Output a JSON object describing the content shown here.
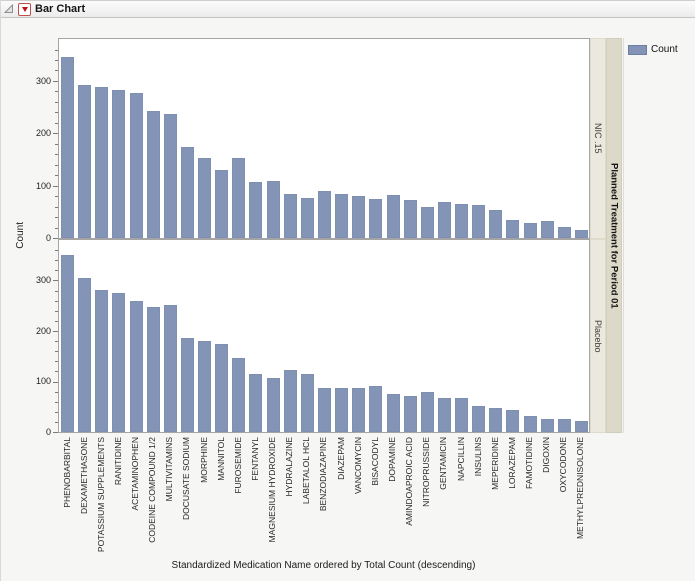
{
  "window": {
    "title": "Bar Chart"
  },
  "legend": {
    "label": "Count",
    "swatch_color": "#8394b6"
  },
  "y_axis": {
    "title": "Count"
  },
  "x_axis": {
    "title": "Standardized Medication Name ordered by Total Count (descending)"
  },
  "group": {
    "title": "Planned Treatment for Period 01",
    "levels": [
      "NIC .15",
      "Placebo"
    ]
  },
  "chart_data": {
    "type": "bar",
    "title": "Bar Chart",
    "categories": [
      "PHENOBARBITAL",
      "DEXAMETHASONE",
      "POTASSIUM SUPPLEMENTS",
      "RANITIDINE",
      "ACETAMINOPHEN",
      "CODEINE COMPOUND 1/2",
      "MULTIVITAMINS",
      "DOCUSATE SODIUM",
      "MORPHINE",
      "MANNITOL",
      "FUROSEMIDE",
      "FENTANYL",
      "MAGNESIUM HYDROXIDE",
      "HYDRALAZINE",
      "LABETALOL HCL",
      "BENZODIAZAPINE",
      "DIAZEPAM",
      "VANCOMYCIN",
      "BISACODYL",
      "DOPAMINE",
      "AMINDOAPROIC ACID",
      "NITROPRUSSIDE",
      "GENTAMICIN",
      "NAPCILLIN",
      "INSULINS",
      "MEPERIDINE",
      "LORAZEPAM",
      "FAMOTIDINE",
      "DIGOXIN",
      "OXYCODONE",
      "METHYLPREDNISOLONE"
    ],
    "series": [
      {
        "name": "NIC .15",
        "values": [
          345,
          293,
          289,
          282,
          277,
          242,
          237,
          174,
          152,
          129,
          153,
          107,
          109,
          84,
          76,
          89,
          84,
          81,
          75,
          83,
          73,
          60,
          68,
          65,
          64,
          54,
          34,
          28,
          33,
          21,
          16
        ]
      },
      {
        "name": "Placebo",
        "values": [
          350,
          305,
          282,
          276,
          260,
          248,
          252,
          187,
          180,
          175,
          146,
          115,
          106,
          123,
          115,
          88,
          88,
          88,
          91,
          75,
          71,
          80,
          67,
          68,
          52,
          47,
          44,
          31,
          25,
          25,
          21
        ]
      }
    ],
    "xlabel": "Standardized Medication Name ordered by Total Count (descending)",
    "ylabel": "Count",
    "ylim": [
      0,
      380
    ],
    "yticks": [
      0,
      100,
      200,
      300
    ],
    "minor_tick_step": 20,
    "axis_tick_max": 360,
    "bar_color": "#8394b6",
    "grid": false,
    "legend_position": "top-right",
    "group_by": "Planned Treatment for Period 01",
    "panel_order": [
      "NIC .15",
      "Placebo"
    ]
  }
}
